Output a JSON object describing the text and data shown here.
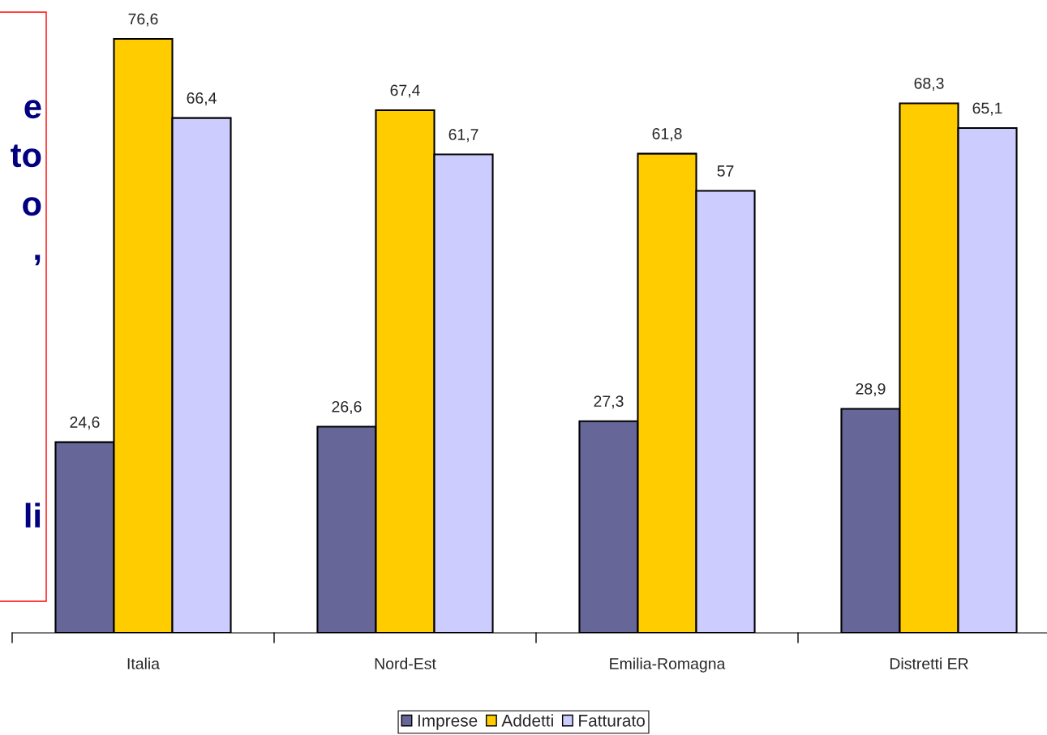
{
  "chart_data": {
    "type": "bar",
    "categories": [
      "Italia",
      "Nord-Est",
      "Emilia-Romagna",
      "Distretti ER"
    ],
    "series": [
      {
        "name": "Imprese",
        "color": "#666699",
        "values": [
          24.6,
          26.6,
          27.3,
          28.9
        ],
        "value_labels": [
          "24,6",
          "26,6",
          "27,3",
          "28,9"
        ]
      },
      {
        "name": "Addetti",
        "color": "#ffcc00",
        "values": [
          76.6,
          67.4,
          61.8,
          68.3
        ],
        "value_labels": [
          "76,6",
          "67,4",
          "61,8",
          "68,3"
        ]
      },
      {
        "name": "Fatturato",
        "color": "#ccccff",
        "values": [
          66.4,
          61.7,
          57,
          65.1
        ],
        "value_labels": [
          "66,4",
          "61,7",
          "57",
          "65,1"
        ]
      }
    ],
    "legend": "bottom",
    "grid": false,
    "annotations": [
      "e",
      "to",
      "o",
      ",",
      "li"
    ]
  }
}
